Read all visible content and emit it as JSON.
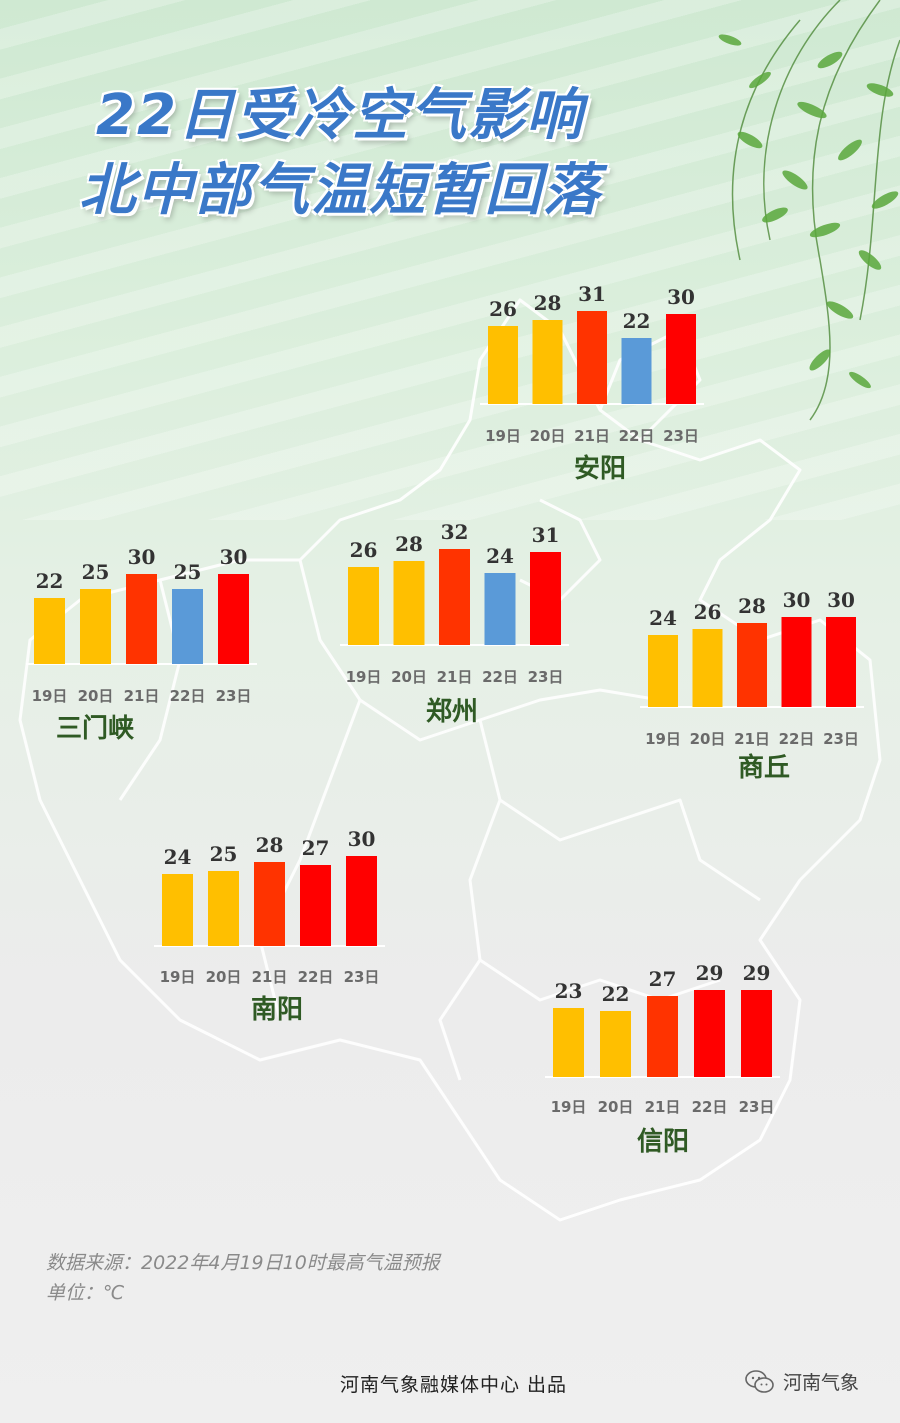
{
  "title": {
    "line1": "22日受冷空气影响",
    "line2": "北中部气温短暂回落"
  },
  "colors": {
    "title": "#3a78c8",
    "yellow": "#ffbf00",
    "orange_red": "#ff3300",
    "red": "#ff0000",
    "blue": "#5a9ad8"
  },
  "chart_data": [
    {
      "type": "bar",
      "city": "安阳",
      "categories": [
        "19日",
        "20日",
        "21日",
        "22日",
        "23日"
      ],
      "values": [
        26,
        28,
        31,
        22,
        30
      ],
      "colors": [
        "#ffbf00",
        "#ffbf00",
        "#ff3300",
        "#5a9ad8",
        "#ff0000"
      ]
    },
    {
      "type": "bar",
      "city": "三门峡",
      "categories": [
        "19日",
        "20日",
        "21日",
        "22日",
        "23日"
      ],
      "values": [
        22,
        25,
        30,
        25,
        30
      ],
      "colors": [
        "#ffbf00",
        "#ffbf00",
        "#ff3300",
        "#5a9ad8",
        "#ff0000"
      ]
    },
    {
      "type": "bar",
      "city": "郑州",
      "categories": [
        "19日",
        "20日",
        "21日",
        "22日",
        "23日"
      ],
      "values": [
        26,
        28,
        32,
        24,
        31
      ],
      "colors": [
        "#ffbf00",
        "#ffbf00",
        "#ff3300",
        "#5a9ad8",
        "#ff0000"
      ]
    },
    {
      "type": "bar",
      "city": "商丘",
      "categories": [
        "19日",
        "20日",
        "21日",
        "22日",
        "23日"
      ],
      "values": [
        24,
        26,
        28,
        30,
        30
      ],
      "colors": [
        "#ffbf00",
        "#ffbf00",
        "#ff3300",
        "#ff0000",
        "#ff0000"
      ]
    },
    {
      "type": "bar",
      "city": "南阳",
      "categories": [
        "19日",
        "20日",
        "21日",
        "22日",
        "23日"
      ],
      "values": [
        24,
        25,
        28,
        27,
        30
      ],
      "colors": [
        "#ffbf00",
        "#ffbf00",
        "#ff3300",
        "#ff0000",
        "#ff0000"
      ]
    },
    {
      "type": "bar",
      "city": "信阳",
      "categories": [
        "19日",
        "20日",
        "21日",
        "22日",
        "23日"
      ],
      "values": [
        23,
        22,
        27,
        29,
        29
      ],
      "colors": [
        "#ffbf00",
        "#ffbf00",
        "#ff3300",
        "#ff0000",
        "#ff0000"
      ]
    }
  ],
  "notes": {
    "source": "数据来源：2022年4月19日10时最高气温预报",
    "unit": "单位：℃"
  },
  "footer": {
    "producer": "河南气象融媒体中心  出品",
    "brand": "河南气象",
    "brand_icon": "wechat-icon"
  }
}
